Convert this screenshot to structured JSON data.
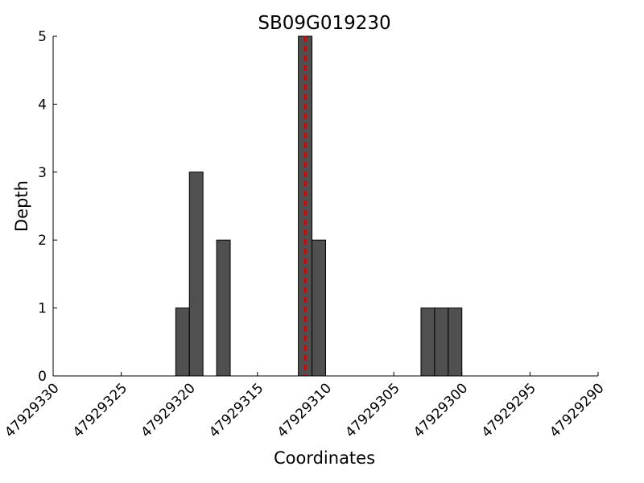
{
  "chart_data": {
    "type": "bar",
    "title": "SB09G019230",
    "x_label": "Coordinates",
    "y_label": "Depth",
    "x": [
      47929321,
      47929320,
      47929318,
      47929312,
      47929311,
      47929303,
      47929302,
      47929301
    ],
    "values": [
      1,
      3,
      2,
      5,
      2,
      1,
      1,
      1
    ],
    "color": "#505050",
    "xlim": [
      47929330,
      47929290
    ],
    "xticks": [
      47929330,
      47929325,
      47929320,
      47929315,
      47929310,
      47929305,
      47929300,
      47929295,
      47929290
    ],
    "ylim": [
      0,
      5
    ],
    "yticks": [
      0,
      1,
      2,
      3,
      4,
      5
    ],
    "vline": {
      "x": 47929311.5,
      "color": "#dd0000"
    }
  }
}
